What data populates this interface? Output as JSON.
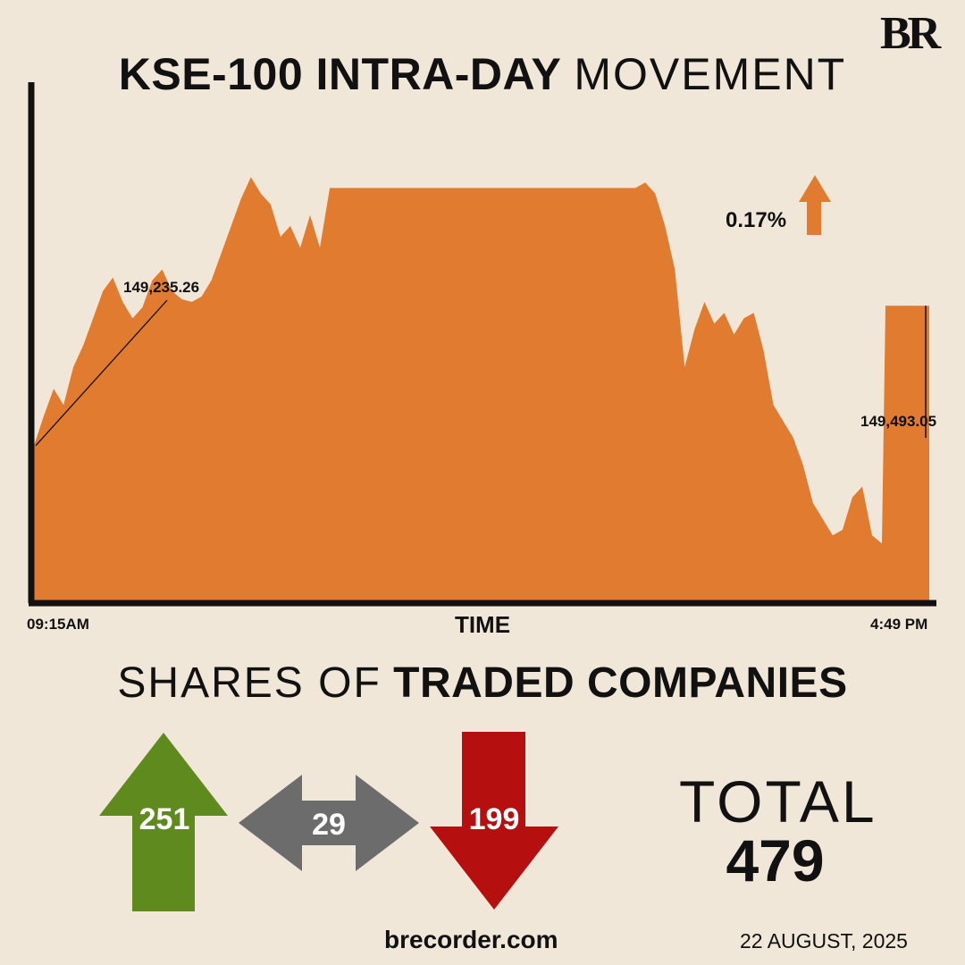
{
  "logo_text": "BR",
  "title_bold": "KSE-100 INTRA-DAY",
  "title_light": "MOVEMENT",
  "change": {
    "percent": "0.17%",
    "direction": "up",
    "color": "#e07b30"
  },
  "chart_data": {
    "type": "area",
    "title": "KSE-100 INTRA-DAY MOVEMENT",
    "xlabel": "TIME",
    "ylabel": "",
    "x_start_label": "09:15AM",
    "x_end_label": "4:49 PM",
    "start_value_label": "149,235.26",
    "end_value_label": "149,493.05",
    "color": "#e07b30",
    "ylim": [
      148950,
      149900
    ],
    "series": [
      {
        "name": "",
        "points": [
          [
            "09:15",
            149235.26
          ],
          [
            "09:20",
            149290
          ],
          [
            "09:25",
            149340
          ],
          [
            "09:30",
            149310
          ],
          [
            "09:35",
            149380
          ],
          [
            "09:40",
            149420
          ],
          [
            "09:45",
            149470
          ],
          [
            "09:50",
            149520
          ],
          [
            "09:55",
            149545
          ],
          [
            "10:00",
            149500
          ],
          [
            "10:05",
            149470
          ],
          [
            "10:10",
            149490
          ],
          [
            "10:15",
            149540
          ],
          [
            "10:20",
            149560
          ],
          [
            "10:25",
            149520
          ],
          [
            "10:30",
            149505
          ],
          [
            "10:35",
            149500
          ],
          [
            "10:40",
            149510
          ],
          [
            "10:45",
            149540
          ],
          [
            "10:55",
            149640
          ],
          [
            "11:00",
            149690
          ],
          [
            "11:05",
            149730
          ],
          [
            "11:10",
            149700
          ],
          [
            "11:15",
            149680
          ],
          [
            "11:20",
            149620
          ],
          [
            "11:25",
            149640
          ],
          [
            "11:30",
            149600
          ],
          [
            "11:35",
            149660
          ],
          [
            "11:40",
            149600
          ],
          [
            "11:45",
            149710
          ],
          [
            "11:50",
            149710
          ],
          [
            "12:30",
            149710
          ],
          [
            "13:00",
            149710
          ],
          [
            "13:30",
            149710
          ],
          [
            "14:00",
            149710
          ],
          [
            "14:20",
            149710
          ],
          [
            "14:25",
            149720
          ],
          [
            "14:30",
            149700
          ],
          [
            "14:35",
            149640
          ],
          [
            "14:40",
            149560
          ],
          [
            "14:45",
            149380
          ],
          [
            "14:50",
            149450
          ],
          [
            "14:55",
            149500
          ],
          [
            "15:00",
            149460
          ],
          [
            "15:05",
            149480
          ],
          [
            "15:10",
            149440
          ],
          [
            "15:15",
            149470
          ],
          [
            "15:20",
            149480
          ],
          [
            "15:25",
            149410
          ],
          [
            "15:30",
            149310
          ],
          [
            "15:35",
            149280
          ],
          [
            "15:40",
            149250
          ],
          [
            "15:45",
            149200
          ],
          [
            "15:50",
            149130
          ],
          [
            "15:55",
            149100
          ],
          [
            "16:00",
            149070
          ],
          [
            "16:05",
            149080
          ],
          [
            "16:10",
            149140
          ],
          [
            "16:15",
            149160
          ],
          [
            "16:20",
            149070
          ],
          [
            "16:25",
            149055
          ],
          [
            "16:49",
            149493.05
          ]
        ]
      }
    ]
  },
  "subtitle_light": "SHARES OF",
  "subtitle_bold": "TRADED COMPANIES",
  "breadth": {
    "advanced": {
      "value": "251",
      "color": "#5f8a1e"
    },
    "unchanged": {
      "value": "29",
      "color": "#6c6c6c"
    },
    "declined": {
      "value": "199",
      "color": "#b5100f"
    }
  },
  "total_label": "TOTAL",
  "total_value": "479",
  "site": "brecorder.com",
  "date": "22 AUGUST, 2025"
}
